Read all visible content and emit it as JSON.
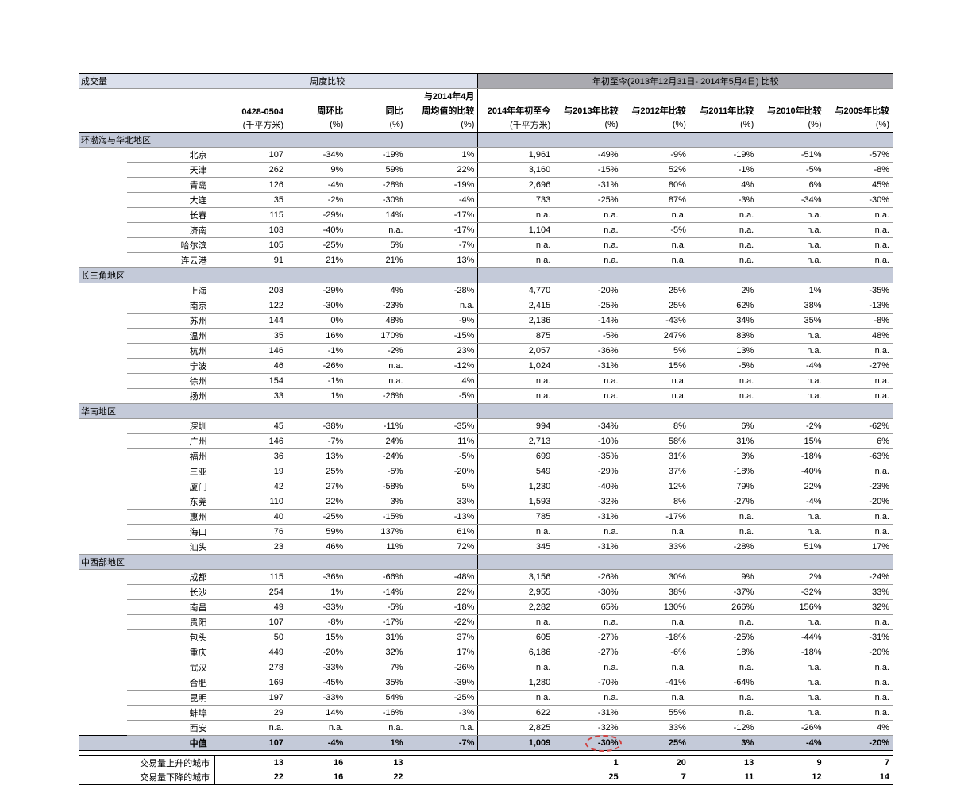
{
  "title_left": "成交量",
  "section_weekly": "周度比较",
  "section_ytd": "年初至今(2013年12月31日- 2014年5月4日) 比较",
  "col_headers": {
    "c1": "0428-0504",
    "c2": "周环比",
    "c3": "同比",
    "c4a": "与2014年4月",
    "c4b": "周均值的比较",
    "c5": "2014年年初至今",
    "c6": "与2013年比较",
    "c7": "与2012年比较",
    "c8": "与2011年比较",
    "c9": "与2010年比较",
    "c10": "与2009年比较"
  },
  "units": {
    "u1": "(千平方米)",
    "u2": "(%)",
    "u3": "(%)",
    "u4": "(%)",
    "u5": "(千平方米)",
    "u6": "(%)",
    "u7": "(%)",
    "u8": "(%)",
    "u9": "(%)",
    "u10": "(%)"
  },
  "regions": [
    {
      "name": "环渤海与华北地区",
      "cities": [
        {
          "n": "北京",
          "v": [
            "107",
            "-34%",
            "-19%",
            "1%",
            "1,961",
            "-49%",
            "-9%",
            "-19%",
            "-51%",
            "-57%"
          ]
        },
        {
          "n": "天津",
          "v": [
            "262",
            "9%",
            "59%",
            "22%",
            "3,160",
            "-15%",
            "52%",
            "-1%",
            "-5%",
            "-8%"
          ]
        },
        {
          "n": "青岛",
          "v": [
            "126",
            "-4%",
            "-28%",
            "-19%",
            "2,696",
            "-31%",
            "80%",
            "4%",
            "6%",
            "45%"
          ]
        },
        {
          "n": "大连",
          "v": [
            "35",
            "-2%",
            "-30%",
            "-4%",
            "733",
            "-25%",
            "87%",
            "-3%",
            "-34%",
            "-30%"
          ]
        },
        {
          "n": "长春",
          "v": [
            "115",
            "-29%",
            "14%",
            "-17%",
            "n.a.",
            "n.a.",
            "n.a.",
            "n.a.",
            "n.a.",
            "n.a."
          ]
        },
        {
          "n": "济南",
          "v": [
            "103",
            "-40%",
            "n.a.",
            "-17%",
            "1,104",
            "n.a.",
            "-5%",
            "n.a.",
            "n.a.",
            "n.a."
          ]
        },
        {
          "n": "哈尔滨",
          "v": [
            "105",
            "-25%",
            "5%",
            "-7%",
            "n.a.",
            "n.a.",
            "n.a.",
            "n.a.",
            "n.a.",
            "n.a."
          ]
        },
        {
          "n": "连云港",
          "v": [
            "91",
            "21%",
            "21%",
            "13%",
            "n.a.",
            "n.a.",
            "n.a.",
            "n.a.",
            "n.a.",
            "n.a."
          ]
        }
      ]
    },
    {
      "name": "长三角地区",
      "cities": [
        {
          "n": "上海",
          "v": [
            "203",
            "-29%",
            "4%",
            "-28%",
            "4,770",
            "-20%",
            "25%",
            "2%",
            "1%",
            "-35%"
          ]
        },
        {
          "n": "南京",
          "v": [
            "122",
            "-30%",
            "-23%",
            "n.a.",
            "2,415",
            "-25%",
            "25%",
            "62%",
            "38%",
            "-13%"
          ]
        },
        {
          "n": "苏州",
          "v": [
            "144",
            "0%",
            "48%",
            "-9%",
            "2,136",
            "-14%",
            "-43%",
            "34%",
            "35%",
            "-8%"
          ]
        },
        {
          "n": "温州",
          "v": [
            "35",
            "16%",
            "170%",
            "-15%",
            "875",
            "-5%",
            "247%",
            "83%",
            "n.a.",
            "48%"
          ]
        },
        {
          "n": "杭州",
          "v": [
            "146",
            "-1%",
            "-2%",
            "23%",
            "2,057",
            "-36%",
            "5%",
            "13%",
            "n.a.",
            "n.a."
          ]
        },
        {
          "n": "宁波",
          "v": [
            "46",
            "-26%",
            "n.a.",
            "-12%",
            "1,024",
            "-31%",
            "15%",
            "-5%",
            "-4%",
            "-27%"
          ]
        },
        {
          "n": "徐州",
          "v": [
            "154",
            "-1%",
            "n.a.",
            "4%",
            "n.a.",
            "n.a.",
            "n.a.",
            "n.a.",
            "n.a.",
            "n.a."
          ]
        },
        {
          "n": "扬州",
          "v": [
            "33",
            "1%",
            "-26%",
            "-5%",
            "n.a.",
            "n.a.",
            "n.a.",
            "n.a.",
            "n.a.",
            "n.a."
          ]
        }
      ]
    },
    {
      "name": "华南地区",
      "cities": [
        {
          "n": "深圳",
          "v": [
            "45",
            "-38%",
            "-11%",
            "-35%",
            "994",
            "-34%",
            "8%",
            "6%",
            "-2%",
            "-62%"
          ]
        },
        {
          "n": "广州",
          "v": [
            "146",
            "-7%",
            "24%",
            "11%",
            "2,713",
            "-10%",
            "58%",
            "31%",
            "15%",
            "6%"
          ]
        },
        {
          "n": "福州",
          "v": [
            "36",
            "13%",
            "-24%",
            "-5%",
            "699",
            "-35%",
            "31%",
            "3%",
            "-18%",
            "-63%"
          ]
        },
        {
          "n": "三亚",
          "v": [
            "19",
            "25%",
            "-5%",
            "-20%",
            "549",
            "-29%",
            "37%",
            "-18%",
            "-40%",
            "n.a."
          ]
        },
        {
          "n": "厦门",
          "v": [
            "42",
            "27%",
            "-58%",
            "5%",
            "1,230",
            "-40%",
            "12%",
            "79%",
            "22%",
            "-23%"
          ]
        },
        {
          "n": "东莞",
          "v": [
            "110",
            "22%",
            "3%",
            "33%",
            "1,593",
            "-32%",
            "8%",
            "-27%",
            "-4%",
            "-20%"
          ]
        },
        {
          "n": "惠州",
          "v": [
            "40",
            "-25%",
            "-15%",
            "-13%",
            "785",
            "-31%",
            "-17%",
            "n.a.",
            "n.a.",
            "n.a."
          ]
        },
        {
          "n": "海口",
          "v": [
            "76",
            "59%",
            "137%",
            "61%",
            "n.a.",
            "n.a.",
            "n.a.",
            "n.a.",
            "n.a.",
            "n.a."
          ]
        },
        {
          "n": "汕头",
          "v": [
            "23",
            "46%",
            "11%",
            "72%",
            "345",
            "-31%",
            "33%",
            "-28%",
            "51%",
            "17%"
          ]
        }
      ]
    },
    {
      "name": "中西部地区",
      "cities": [
        {
          "n": "成都",
          "v": [
            "115",
            "-36%",
            "-66%",
            "-48%",
            "3,156",
            "-26%",
            "30%",
            "9%",
            "2%",
            "-24%"
          ]
        },
        {
          "n": "长沙",
          "v": [
            "254",
            "1%",
            "-14%",
            "22%",
            "2,955",
            "-30%",
            "38%",
            "-37%",
            "-32%",
            "33%"
          ]
        },
        {
          "n": "南昌",
          "v": [
            "49",
            "-33%",
            "-5%",
            "-18%",
            "2,282",
            "65%",
            "130%",
            "266%",
            "156%",
            "32%"
          ]
        },
        {
          "n": "贵阳",
          "v": [
            "107",
            "-8%",
            "-17%",
            "-22%",
            "n.a.",
            "n.a.",
            "n.a.",
            "n.a.",
            "n.a.",
            "n.a."
          ]
        },
        {
          "n": "包头",
          "v": [
            "50",
            "15%",
            "31%",
            "37%",
            "605",
            "-27%",
            "-18%",
            "-25%",
            "-44%",
            "-31%"
          ]
        },
        {
          "n": "重庆",
          "v": [
            "449",
            "-20%",
            "32%",
            "17%",
            "6,186",
            "-27%",
            "-6%",
            "18%",
            "-18%",
            "-20%"
          ]
        },
        {
          "n": "武汉",
          "v": [
            "278",
            "-33%",
            "7%",
            "-26%",
            "n.a.",
            "n.a.",
            "n.a.",
            "n.a.",
            "n.a.",
            "n.a."
          ]
        },
        {
          "n": "合肥",
          "v": [
            "169",
            "-45%",
            "35%",
            "-39%",
            "1,280",
            "-70%",
            "-41%",
            "-64%",
            "n.a.",
            "n.a."
          ]
        },
        {
          "n": "昆明",
          "v": [
            "197",
            "-33%",
            "54%",
            "-25%",
            "n.a.",
            "n.a.",
            "n.a.",
            "n.a.",
            "n.a.",
            "n.a."
          ]
        },
        {
          "n": "蚌埠",
          "v": [
            "29",
            "14%",
            "-16%",
            "-3%",
            "622",
            "-31%",
            "55%",
            "n.a.",
            "n.a.",
            "n.a."
          ]
        },
        {
          "n": "西安",
          "v": [
            "n.a.",
            "n.a.",
            "n.a.",
            "n.a.",
            "2,825",
            "-32%",
            "33%",
            "-12%",
            "-26%",
            "4%"
          ]
        }
      ]
    }
  ],
  "median": {
    "label": "中值",
    "v": [
      "107",
      "-4%",
      "1%",
      "-7%",
      "1,009",
      "-30%",
      "25%",
      "3%",
      "-4%",
      "-20%"
    ]
  },
  "summary": {
    "up_label": "交易量上升的城市",
    "down_label": "交易量下降的城市",
    "up": [
      "13",
      "16",
      "13",
      "",
      "1",
      "20",
      "13",
      "9",
      "7"
    ],
    "down": [
      "22",
      "16",
      "22",
      "",
      "25",
      "7",
      "11",
      "12",
      "14"
    ]
  },
  "circle_col_index": 5
}
